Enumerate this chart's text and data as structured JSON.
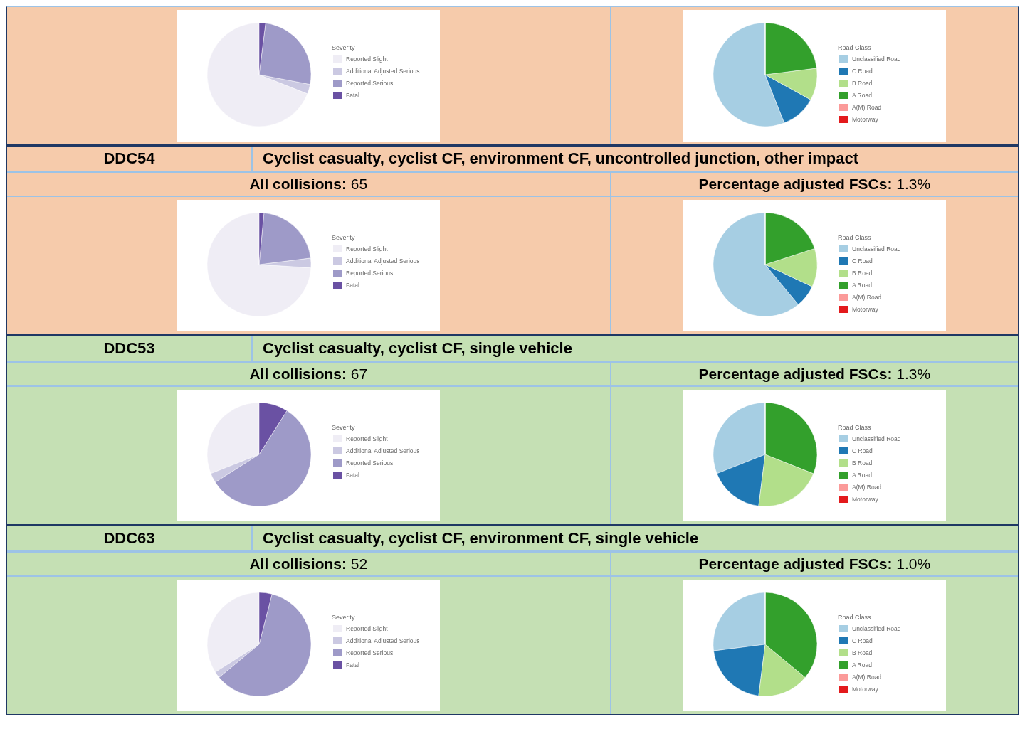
{
  "chart_data": [
    {
      "type": "pie",
      "legend_title": "Severity",
      "legend": "right",
      "categories": [
        "Reported Slight",
        "Additional Adjusted Serious",
        "Reported Serious",
        "Fatal"
      ],
      "values": [
        69,
        3,
        26,
        2
      ],
      "colors": [
        "#efedf5",
        "#cbc9e2",
        "#9e9ac8",
        "#6a51a3"
      ]
    },
    {
      "type": "pie",
      "legend_title": "Road Class",
      "legend": "right",
      "categories": [
        "Unclassified Road",
        "C Road",
        "B Road",
        "A Road",
        "A(M) Road",
        "Motorway"
      ],
      "values": [
        56,
        11,
        10,
        23,
        0,
        0
      ],
      "colors": [
        "#a6cee3",
        "#1f78b4",
        "#b2df8a",
        "#33a02c",
        "#fb9a99",
        "#e31a1c"
      ]
    },
    {
      "type": "other",
      "title": "DDC54",
      "subtitle": "Cyclist casualty, cyclist CF, environment CF, uncontrolled junction, other impact",
      "annotations": [
        "All collisions: 65",
        "Percentage adjusted FSCs: 1.3%"
      ]
    },
    {
      "type": "pie",
      "legend_title": "Severity",
      "legend": "right",
      "categories": [
        "Reported Slight",
        "Additional Adjusted Serious",
        "Reported Serious",
        "Fatal"
      ],
      "values": [
        74,
        3,
        21.5,
        1.5
      ],
      "colors": [
        "#efedf5",
        "#cbc9e2",
        "#9e9ac8",
        "#6a51a3"
      ]
    },
    {
      "type": "pie",
      "legend_title": "Road Class",
      "legend": "right",
      "categories": [
        "Unclassified Road",
        "C Road",
        "B Road",
        "A Road",
        "A(M) Road",
        "Motorway"
      ],
      "values": [
        61,
        7,
        12,
        20,
        0,
        0
      ],
      "colors": [
        "#a6cee3",
        "#1f78b4",
        "#b2df8a",
        "#33a02c",
        "#fb9a99",
        "#e31a1c"
      ]
    },
    {
      "type": "other",
      "title": "DDC53",
      "subtitle": "Cyclist casualty, cyclist CF, single vehicle",
      "annotations": [
        "All collisions: 67",
        "Percentage adjusted FSCs: 1.3%"
      ]
    },
    {
      "type": "pie",
      "legend_title": "Severity",
      "legend": "right",
      "categories": [
        "Reported Slight",
        "Additional Adjusted Serious",
        "Reported Serious",
        "Fatal"
      ],
      "values": [
        31,
        3,
        57,
        9
      ],
      "colors": [
        "#efedf5",
        "#cbc9e2",
        "#9e9ac8",
        "#6a51a3"
      ]
    },
    {
      "type": "pie",
      "legend_title": "Road Class",
      "legend": "right",
      "categories": [
        "Unclassified Road",
        "C Road",
        "B Road",
        "A Road",
        "A(M) Road",
        "Motorway"
      ],
      "values": [
        31,
        17,
        21,
        31,
        0,
        0
      ],
      "colors": [
        "#a6cee3",
        "#1f78b4",
        "#b2df8a",
        "#33a02c",
        "#fb9a99",
        "#e31a1c"
      ]
    },
    {
      "type": "other",
      "title": "DDC63",
      "subtitle": "Cyclist casualty, cyclist CF, environment CF, single vehicle",
      "annotations": [
        "All collisions: 52",
        "Percentage adjusted FSCs: 1.0%"
      ]
    },
    {
      "type": "pie",
      "legend_title": "Severity",
      "legend": "right",
      "categories": [
        "Reported Slight",
        "Additional Adjusted Serious",
        "Reported Serious",
        "Fatal"
      ],
      "values": [
        34,
        2,
        60,
        4
      ],
      "colors": [
        "#efedf5",
        "#cbc9e2",
        "#9e9ac8",
        "#6a51a3"
      ]
    },
    {
      "type": "pie",
      "legend_title": "Road Class",
      "legend": "right",
      "categories": [
        "Unclassified Road",
        "C Road",
        "B Road",
        "A Road",
        "A(M) Road",
        "Motorway"
      ],
      "values": [
        27,
        21,
        16,
        36,
        0,
        0
      ],
      "colors": [
        "#a6cee3",
        "#1f78b4",
        "#b2df8a",
        "#33a02c",
        "#fb9a99",
        "#e31a1c"
      ]
    }
  ]
}
